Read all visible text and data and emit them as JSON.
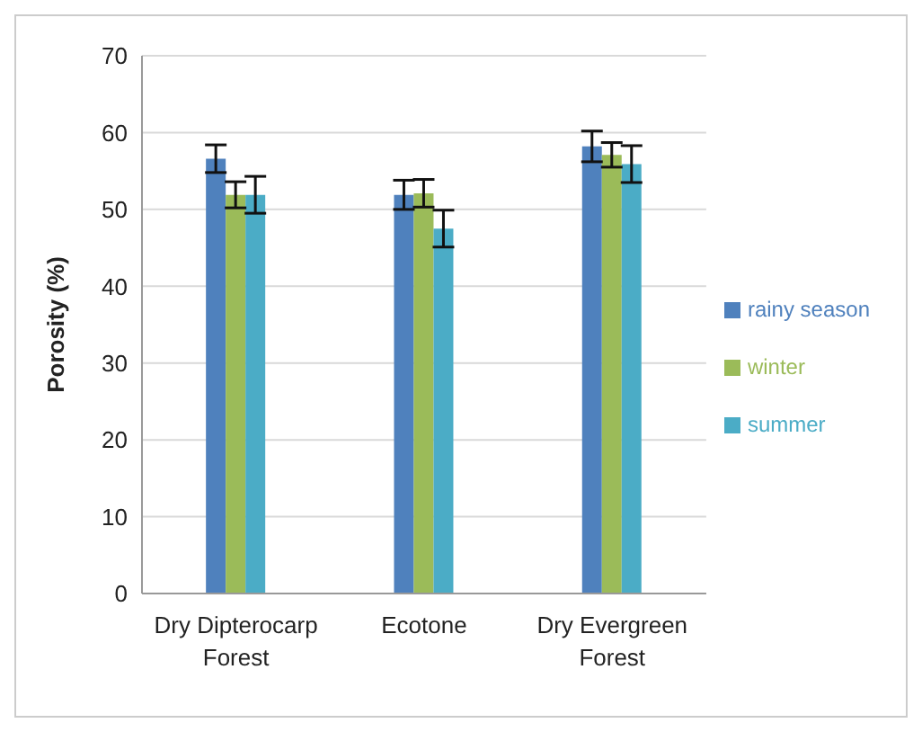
{
  "chart_data": {
    "type": "bar",
    "ylabel": "Porosity (%)",
    "categories": [
      "Dry Dipterocarp Forest",
      "Ecotone",
      "Dry Evergreen Forest"
    ],
    "series": [
      {
        "name": "rainy season",
        "color": "#4f81bd",
        "values": [
          56.6,
          51.9,
          58.2
        ],
        "errors": [
          1.8,
          1.9,
          2.0
        ]
      },
      {
        "name": "winter",
        "color": "#9bbb59",
        "values": [
          51.9,
          52.1,
          57.1
        ],
        "errors": [
          1.7,
          1.8,
          1.6
        ]
      },
      {
        "name": "summer",
        "color": "#4bacc6",
        "values": [
          51.9,
          47.5,
          55.9
        ],
        "errors": [
          2.4,
          2.4,
          2.4
        ]
      }
    ],
    "ylim": [
      0,
      70
    ],
    "yticks": [
      0,
      10,
      20,
      30,
      40,
      50,
      60,
      70
    ],
    "grid": "y",
    "legend": "right"
  }
}
